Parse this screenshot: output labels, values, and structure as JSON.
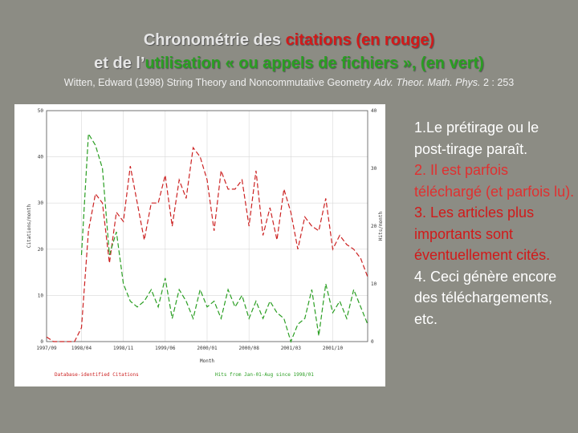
{
  "slide": {
    "title_line1_pre": "Chronométrie des ",
    "title_line1_red": "citations (en rouge)",
    "title_line2_pre": "et de l’",
    "title_line2_green": "utilisation « ou appels de fichiers », (en vert)",
    "reference_pre": "Witten, Edward (1998) String Theory and Noncommutative Geometry ",
    "reference_journal": "Adv. Theor. Math. Phys.",
    "reference_post": " 2 : 253",
    "notes": [
      "1.Le prétirage ou le post-tirage paraît.",
      "2. Il est parfois téléchargé (et parfois lu).",
      "3. Les articles plus importants sont éventuellement cités.",
      "4. Ceci génère encore des téléchargements, etc."
    ]
  },
  "chart_data": {
    "type": "line",
    "title": "",
    "xlabel": "Month",
    "ylabel": "Citations/month",
    "y2label": "Hits/month",
    "xlim": [
      0,
      46
    ],
    "ylim": [
      0,
      50
    ],
    "y2lim": [
      0,
      40
    ],
    "x_ticks": [
      {
        "x": 0,
        "label": "1997/09"
      },
      {
        "x": 5,
        "label": "1998/04"
      },
      {
        "x": 11,
        "label": "1998/11"
      },
      {
        "x": 17,
        "label": "1999/06"
      },
      {
        "x": 23,
        "label": "2000/01"
      },
      {
        "x": 29,
        "label": "2000/08"
      },
      {
        "x": 35,
        "label": "2001/03"
      },
      {
        "x": 41,
        "label": "2001/10"
      }
    ],
    "y_ticks": [
      0,
      10,
      20,
      30,
      40,
      50
    ],
    "y2_ticks": [
      0,
      10,
      20,
      30,
      40
    ],
    "legend": [
      "Database-identified Citations",
      "Hits from Jan-01-Aug since 1998/01"
    ],
    "grid": true,
    "series": [
      {
        "color": "#cc2222",
        "axis": "left",
        "x": [
          0,
          1,
          2,
          3,
          4,
          5,
          6,
          7,
          8,
          9,
          10,
          11,
          12,
          13,
          14,
          15,
          16,
          17,
          18,
          19,
          20,
          21,
          22,
          23,
          24,
          25,
          26,
          27,
          28,
          29,
          30,
          31,
          32,
          33,
          34,
          35,
          36,
          37,
          38,
          39,
          40,
          41,
          42,
          43,
          44,
          45,
          46
        ],
        "y": [
          1,
          0,
          0,
          0,
          0,
          3,
          24,
          32,
          30,
          17,
          28,
          26,
          38,
          30,
          22,
          30,
          30,
          36,
          25,
          35,
          31,
          42,
          40,
          35,
          24,
          37,
          33,
          33,
          35,
          25,
          37,
          23,
          29,
          22,
          33,
          28,
          20,
          27,
          25,
          24,
          31,
          20,
          23,
          21,
          20,
          18,
          14
        ]
      },
      {
        "color": "#2a9e22",
        "axis": "right",
        "x": [
          5,
          6,
          7,
          8,
          9,
          10,
          11,
          12,
          13,
          14,
          15,
          16,
          17,
          18,
          19,
          20,
          21,
          22,
          23,
          24,
          25,
          26,
          27,
          28,
          29,
          30,
          31,
          32,
          33,
          34,
          35,
          36,
          37,
          38,
          39,
          40,
          41,
          42,
          43,
          44,
          45,
          46
        ],
        "y": [
          15,
          36,
          34,
          30,
          15,
          19,
          10,
          7,
          6,
          7,
          9,
          6,
          11,
          4,
          9,
          7,
          4,
          9,
          6,
          7,
          4,
          9,
          6,
          8,
          4,
          7,
          4,
          7,
          5,
          4,
          0,
          3,
          4,
          9,
          1,
          10,
          5,
          7,
          4,
          9,
          6,
          3
        ]
      }
    ]
  }
}
